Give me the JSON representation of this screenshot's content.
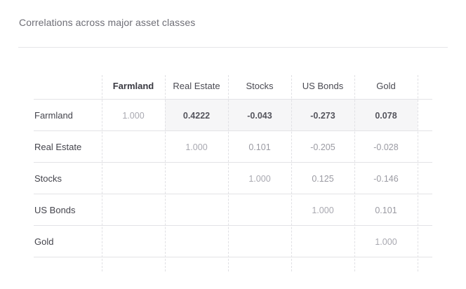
{
  "title": "Correlations across major asset classes",
  "columns": [
    "Farmland",
    "Real Estate",
    "Stocks",
    "US Bonds",
    "Gold"
  ],
  "rows": [
    {
      "label": "Farmland",
      "values": [
        "1.000",
        "0.4222",
        "-0.043",
        "-0.273",
        "0.078"
      ]
    },
    {
      "label": "Real Estate",
      "values": [
        "",
        "1.000",
        "0.101",
        "-0.205",
        "-0.028"
      ]
    },
    {
      "label": "Stocks",
      "values": [
        "",
        "",
        "1.000",
        "0.125",
        "-0.146"
      ]
    },
    {
      "label": "US Bonds",
      "values": [
        "",
        "",
        "",
        "1.000",
        "0.101"
      ]
    },
    {
      "label": "Gold",
      "values": [
        "",
        "",
        "",
        "",
        "1.000"
      ]
    }
  ],
  "highlight": {
    "column": "Farmland",
    "row": "Farmland"
  }
}
